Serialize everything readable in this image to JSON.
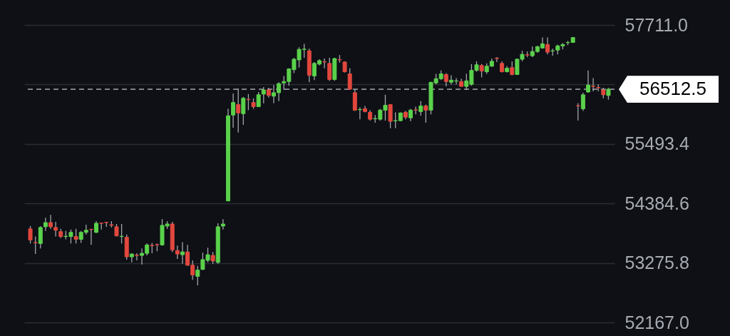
{
  "chart_data": {
    "type": "candlestick",
    "categories": [
      null,
      null,
      null,
      null,
      null,
      null,
      null,
      null,
      null,
      null,
      null,
      null,
      null,
      null,
      null,
      null,
      null,
      null,
      null,
      null,
      null,
      null,
      null,
      null,
      null,
      null,
      null,
      null,
      null,
      null,
      null,
      null,
      null,
      null,
      null,
      null,
      null,
      null,
      null,
      null,
      null,
      null,
      null,
      null,
      null,
      null,
      null,
      null,
      null,
      null,
      null,
      null,
      null,
      null,
      null,
      null,
      null,
      null,
      null,
      null,
      null,
      null,
      null,
      null,
      null,
      null,
      null,
      null,
      null,
      null,
      null,
      null,
      null,
      null,
      null,
      null,
      null,
      null,
      null,
      null,
      null,
      null,
      null,
      null,
      null,
      null,
      null,
      null,
      null,
      null,
      null,
      null,
      null,
      null,
      null,
      null,
      null,
      null,
      null,
      null,
      null,
      null,
      null,
      null,
      null,
      null,
      null,
      null,
      null,
      null,
      null,
      null,
      null,
      null,
      null
    ],
    "ohlc": [
      [
        53911,
        53963,
        53638,
        53703
      ],
      [
        53656,
        53768,
        53442,
        53651
      ],
      [
        53638,
        53963,
        53547,
        53937
      ],
      [
        53950,
        54119,
        53872,
        54028
      ],
      [
        54028,
        54171,
        53911,
        53950
      ],
      [
        53937,
        54041,
        53768,
        53885
      ],
      [
        53859,
        53911,
        53742,
        53768
      ],
      [
        53768,
        53872,
        53716,
        53773
      ],
      [
        53768,
        53898,
        53638,
        53846
      ],
      [
        53768,
        53911,
        53638,
        53716
      ],
      [
        53716,
        53872,
        53651,
        53846
      ],
      [
        53846,
        53989,
        53807,
        53885
      ],
      [
        53903,
        53911,
        53612,
        53898
      ],
      [
        53846,
        54054,
        53833,
        54015
      ],
      [
        54020,
        54028,
        53898,
        54015
      ],
      [
        54033,
        54041,
        53950,
        54028
      ],
      [
        53989,
        54054,
        53937,
        53976
      ],
      [
        53950,
        54002,
        53768,
        53781
      ],
      [
        53768,
        54002,
        53638,
        53773
      ],
      [
        53755,
        53807,
        53338,
        53390
      ],
      [
        53390,
        53455,
        53286,
        53442
      ],
      [
        53421,
        53455,
        53325,
        53416
      ],
      [
        53416,
        53547,
        53247,
        53455
      ],
      [
        53455,
        53638,
        53416,
        53612
      ],
      [
        53604,
        53651,
        53455,
        53599
      ],
      [
        53617,
        53638,
        53495,
        53612
      ],
      [
        53612,
        54093,
        53599,
        53976
      ],
      [
        53963,
        54054,
        53911,
        54002
      ],
      [
        54002,
        54041,
        53481,
        53520
      ],
      [
        53507,
        53599,
        53351,
        53442
      ],
      [
        53429,
        53664,
        53260,
        53481
      ],
      [
        53481,
        53612,
        53221,
        53234
      ],
      [
        53234,
        53325,
        52961,
        53052
      ],
      [
        53026,
        53221,
        52857,
        53143
      ],
      [
        53156,
        53468,
        53143,
        53338
      ],
      [
        53325,
        53560,
        53286,
        53429
      ],
      [
        53416,
        53481,
        53260,
        53312
      ],
      [
        53286,
        54015,
        53260,
        53950
      ],
      [
        53963,
        54093,
        53898,
        54002
      ],
      [
        54431,
        56149,
        54431,
        56019
      ],
      [
        56032,
        56436,
        55798,
        56266
      ],
      [
        56227,
        56527,
        55707,
        56071
      ],
      [
        56058,
        56371,
        55850,
        56345
      ],
      [
        56324,
        56423,
        56123,
        56319
      ],
      [
        56266,
        56345,
        56149,
        56188
      ],
      [
        56188,
        56462,
        56188,
        56410
      ],
      [
        56423,
        56553,
        56253,
        56501
      ],
      [
        56501,
        56540,
        56358,
        56397
      ],
      [
        56384,
        56592,
        56253,
        56449
      ],
      [
        56449,
        56644,
        56293,
        56618
      ],
      [
        56631,
        56761,
        56501,
        56657
      ],
      [
        56657,
        56904,
        56579,
        56891
      ],
      [
        56878,
        57099,
        56813,
        57073
      ],
      [
        57060,
        57295,
        56917,
        57256
      ],
      [
        57256,
        57360,
        57099,
        57261
      ],
      [
        57230,
        57269,
        56644,
        56774
      ],
      [
        56761,
        57021,
        56683,
        56995
      ],
      [
        56982,
        57073,
        56956,
        57047
      ],
      [
        57026,
        57086,
        56904,
        57021
      ],
      [
        56995,
        57099,
        56670,
        56696
      ],
      [
        56696,
        57099,
        56670,
        57086
      ],
      [
        57065,
        57151,
        57008,
        57060
      ],
      [
        57021,
        57034,
        56826,
        56839
      ],
      [
        56800,
        56904,
        56501,
        56514
      ],
      [
        56449,
        56514,
        56110,
        56123
      ],
      [
        56131,
        56175,
        55954,
        56136
      ],
      [
        56149,
        56201,
        56084,
        56097
      ],
      [
        56084,
        56123,
        55928,
        55954
      ],
      [
        55962,
        56032,
        55889,
        55967
      ],
      [
        55954,
        56149,
        55928,
        56123
      ],
      [
        56123,
        56410,
        55928,
        56214
      ],
      [
        56227,
        56227,
        55785,
        55915
      ],
      [
        55923,
        56084,
        55785,
        55928
      ],
      [
        55928,
        56084,
        55915,
        56071
      ],
      [
        56084,
        56110,
        55954,
        55993
      ],
      [
        55980,
        56149,
        55915,
        56123
      ],
      [
        56128,
        56188,
        56045,
        56123
      ],
      [
        56097,
        56293,
        56019,
        56201
      ],
      [
        56201,
        56227,
        55889,
        56123
      ],
      [
        56123,
        56644,
        56045,
        56644
      ],
      [
        56631,
        56800,
        56605,
        56709
      ],
      [
        56709,
        56865,
        56683,
        56800
      ],
      [
        56787,
        56813,
        56566,
        56657
      ],
      [
        56644,
        56774,
        56605,
        56683
      ],
      [
        56665,
        56722,
        56605,
        56670
      ],
      [
        56657,
        56709,
        56566,
        56566
      ],
      [
        56566,
        56800,
        56501,
        56670
      ],
      [
        56605,
        56982,
        56579,
        56865
      ],
      [
        56865,
        57034,
        56839,
        56969
      ],
      [
        56956,
        56982,
        56735,
        56852
      ],
      [
        56839,
        56995,
        56800,
        56943
      ],
      [
        56943,
        57086,
        56930,
        57034
      ],
      [
        57091,
        57112,
        57021,
        57086
      ],
      [
        56995,
        57034,
        56826,
        56839
      ],
      [
        56839,
        56943,
        56826,
        56904
      ],
      [
        56917,
        57034,
        56774,
        56787
      ],
      [
        56787,
        57086,
        56787,
        57073
      ],
      [
        57073,
        57230,
        57034,
        57164
      ],
      [
        57156,
        57217,
        57112,
        57151
      ],
      [
        57138,
        57308,
        57112,
        57217
      ],
      [
        57217,
        57321,
        57191,
        57308
      ],
      [
        57282,
        57477,
        57269,
        57360
      ],
      [
        57347,
        57477,
        57164,
        57204
      ],
      [
        57225,
        57269,
        57138,
        57230
      ],
      [
        57243,
        57347,
        57164,
        57321
      ],
      [
        57321,
        57373,
        57256,
        57347
      ],
      [
        57381,
        57412,
        57334,
        57386
      ],
      [
        57386,
        57477,
        57386,
        57477
      ],
      [
        56206,
        56253,
        55928,
        56201
      ],
      [
        56149,
        56449,
        56110,
        56410
      ],
      [
        56462,
        56865,
        56449,
        56592
      ],
      [
        56571,
        56722,
        56475,
        56566
      ],
      [
        56545,
        56605,
        56475,
        56540
      ],
      [
        56501,
        56540,
        56345,
        56410
      ],
      [
        56397,
        56540,
        56319,
        56514
      ]
    ],
    "colors": [
      "#e2473d",
      "#e2473d",
      "#5ad14b",
      "#5ad14b",
      "#e2473d",
      "#e2473d",
      "#e2473d",
      "#5ad14b",
      "#5ad14b",
      "#e2473d",
      "#5ad14b",
      "#5ad14b",
      "#e2473d",
      "#5ad14b",
      "#e2473d",
      "#e2473d",
      "#e2473d",
      "#e2473d",
      "#5ad14b",
      "#e2473d",
      "#5ad14b",
      "#e2473d",
      "#5ad14b",
      "#5ad14b",
      "#e2473d",
      "#e2473d",
      "#5ad14b",
      "#5ad14b",
      "#e2473d",
      "#e2473d",
      "#5ad14b",
      "#e2473d",
      "#e2473d",
      "#5ad14b",
      "#5ad14b",
      "#5ad14b",
      "#e2473d",
      "#5ad14b",
      "#5ad14b",
      "#5ad14b",
      "#5ad14b",
      "#e2473d",
      "#5ad14b",
      "#e2473d",
      "#e2473d",
      "#5ad14b",
      "#5ad14b",
      "#e2473d",
      "#5ad14b",
      "#5ad14b",
      "#5ad14b",
      "#5ad14b",
      "#5ad14b",
      "#5ad14b",
      "#5ad14b",
      "#e2473d",
      "#5ad14b",
      "#5ad14b",
      "#e2473d",
      "#e2473d",
      "#5ad14b",
      "#e2473d",
      "#e2473d",
      "#e2473d",
      "#e2473d",
      "#5ad14b",
      "#e2473d",
      "#e2473d",
      "#5ad14b",
      "#5ad14b",
      "#5ad14b",
      "#e2473d",
      "#5ad14b",
      "#5ad14b",
      "#e2473d",
      "#5ad14b",
      "#e2473d",
      "#5ad14b",
      "#e2473d",
      "#5ad14b",
      "#5ad14b",
      "#5ad14b",
      "#e2473d",
      "#5ad14b",
      "#5ad14b",
      "#e2473d",
      "#5ad14b",
      "#5ad14b",
      "#5ad14b",
      "#e2473d",
      "#5ad14b",
      "#5ad14b",
      "#e2473d",
      "#e2473d",
      "#5ad14b",
      "#e2473d",
      "#5ad14b",
      "#5ad14b",
      "#e2473d",
      "#5ad14b",
      "#5ad14b",
      "#5ad14b",
      "#e2473d",
      "#5ad14b",
      "#5ad14b",
      "#5ad14b",
      "#5ad14b",
      "#5ad14b",
      "#e2473d",
      "#5ad14b",
      "#5ad14b",
      "#e2473d",
      "#e2473d",
      "#e2473d",
      "#5ad14b"
    ],
    "ylim": [
      52167.0,
      57711.0
    ],
    "yticks": [
      {
        "value": 52167.0,
        "label": "52167.0"
      },
      {
        "value": 53275.8,
        "label": "53275.8"
      },
      {
        "value": 54384.6,
        "label": "54384.6"
      },
      {
        "value": 55493.4,
        "label": "55493.4"
      },
      {
        "value": 56602.2,
        "label": null
      },
      {
        "value": 57711.0,
        "label": "57711.0"
      }
    ],
    "grid": "y",
    "tick_labels": "y",
    "ref_lines": [
      {
        "axis": "y",
        "value": 56512.5,
        "label": "56512.5",
        "line_style": "dashed",
        "color": "#8f9299"
      }
    ]
  }
}
